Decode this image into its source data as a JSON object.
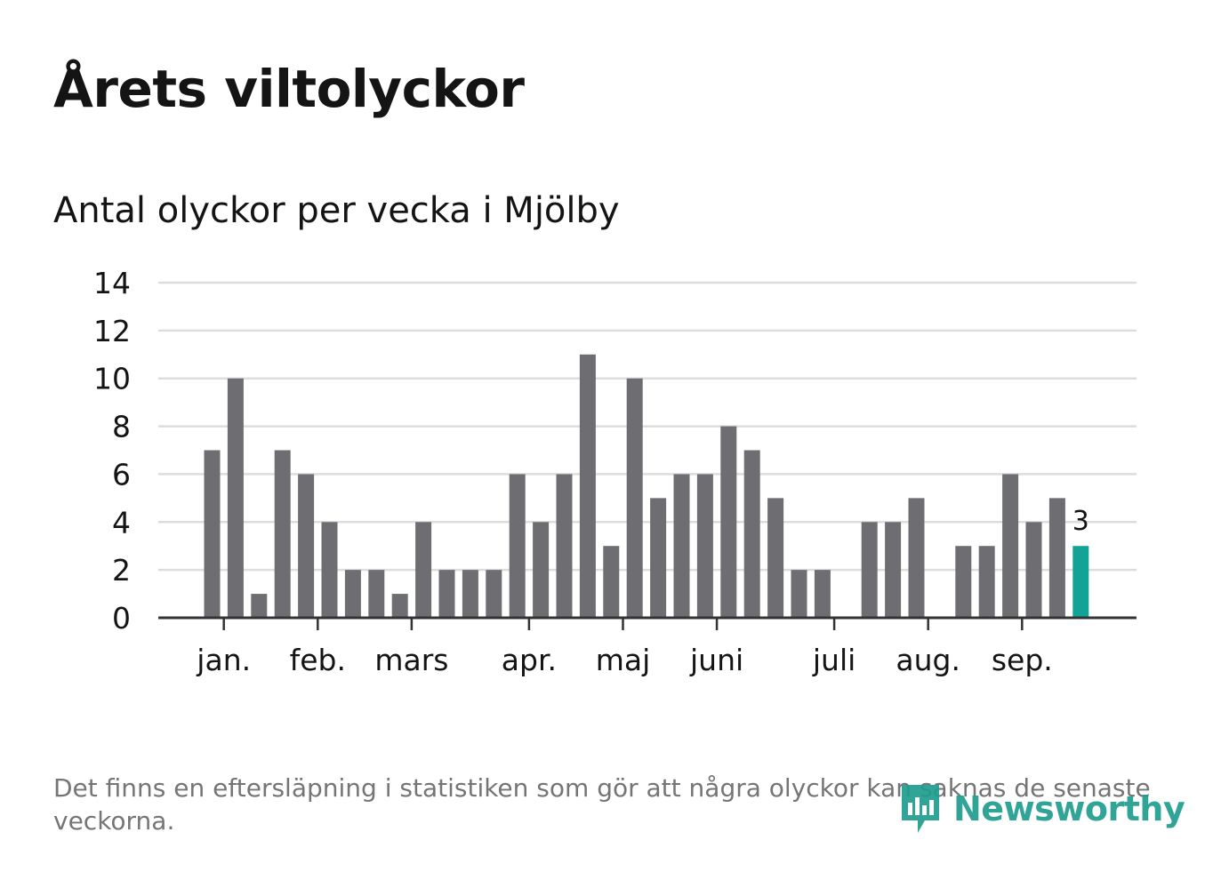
{
  "title": "Årets viltolyckor",
  "subtitle": "Antal olyckor per vecka i Mjölby",
  "footnote": "Det finns en eftersläpning i statistiken som gör att några olyckor kan saknas de senaste veckorna.",
  "brand": {
    "name": "Newsworthy",
    "icon": "newsworthy-logo-icon"
  },
  "colors": {
    "bar": "#6e6d72",
    "highlight": "#12a396",
    "grid": "#dddddd",
    "axis": "#333333",
    "text": "#141414",
    "note": "#757575"
  },
  "chart_data": {
    "type": "bar",
    "title": "Antal olyckor per vecka i Mjölby",
    "xlabel": "",
    "ylabel": "",
    "ylim": [
      0,
      14
    ],
    "yticks": [
      0,
      2,
      4,
      6,
      8,
      10,
      12,
      14
    ],
    "grid": true,
    "weeks": [
      1,
      2,
      3,
      4,
      5,
      6,
      7,
      8,
      9,
      10,
      11,
      12,
      13,
      14,
      15,
      16,
      17,
      18,
      19,
      20,
      21,
      22,
      23,
      24,
      25,
      26,
      27,
      28,
      29,
      30,
      31,
      32,
      33,
      34,
      35,
      36,
      37,
      38
    ],
    "values": [
      7,
      10,
      1,
      7,
      6,
      4,
      2,
      2,
      1,
      4,
      2,
      2,
      2,
      6,
      4,
      6,
      11,
      3,
      10,
      5,
      6,
      6,
      8,
      7,
      5,
      2,
      2,
      0,
      4,
      4,
      5,
      0,
      3,
      3,
      6,
      4,
      5,
      3
    ],
    "highlight_index": 37,
    "highlight_label": "3",
    "month_labels": [
      {
        "label": "jan.",
        "week": 1.5
      },
      {
        "label": "feb.",
        "week": 5.5
      },
      {
        "label": "mars",
        "week": 9.5
      },
      {
        "label": "apr.",
        "week": 14.5
      },
      {
        "label": "maj",
        "week": 18.5
      },
      {
        "label": "juni",
        "week": 22.5
      },
      {
        "label": "juli",
        "week": 27.5
      },
      {
        "label": "aug.",
        "week": 31.5
      },
      {
        "label": "sep.",
        "week": 35.5
      }
    ]
  }
}
